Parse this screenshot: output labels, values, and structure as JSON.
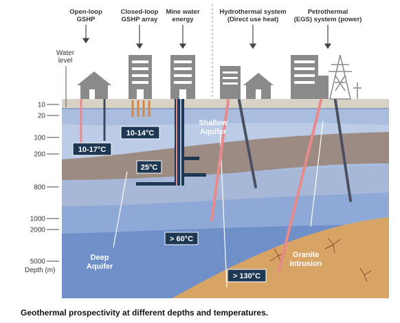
{
  "headers": {
    "open_loop": [
      "Open-loop",
      "GSHP"
    ],
    "closed_loop": [
      "Closed-loop",
      "GSHP array"
    ],
    "mine_water": [
      "Mine water",
      "energy"
    ],
    "hydrothermal": [
      "Hydrothermal system",
      "(Direct use heat)"
    ],
    "petrothermal": [
      "Petrothermal",
      "(EGS) system (power)"
    ]
  },
  "water_level": [
    "Water",
    "level"
  ],
  "depth_ticks": [
    "10",
    "20",
    "100",
    "200",
    "800",
    "1000",
    "2000",
    "5000"
  ],
  "depth_unit": "Depth (m)",
  "temperatures": {
    "open_loop": "10-17°C",
    "closed_loop": "10-14°C",
    "mine": "25°C",
    "hydro": "> 60°C",
    "egs": "> 130°C"
  },
  "layer_labels": {
    "shallow": [
      "Shallow",
      "Aquifer"
    ],
    "deep": [
      "Deep",
      "Aquifer"
    ],
    "granite": [
      "Granite",
      "intrusion"
    ]
  },
  "caption": "Geothermal prospectivity at different depths and temperatures.",
  "colors": {
    "surface": "#d7d2c4",
    "aquifer_light": "#a9bedf",
    "aquifer_mid": "#8ea9d6",
    "aquifer_deep": "#6f8fc8",
    "rock_brown": "#9c8b82",
    "granite": "#d7a466",
    "label_box": "#1e3752",
    "pipe_hot": "#e98a8a",
    "pipe_cold": "#3a4a5e"
  }
}
